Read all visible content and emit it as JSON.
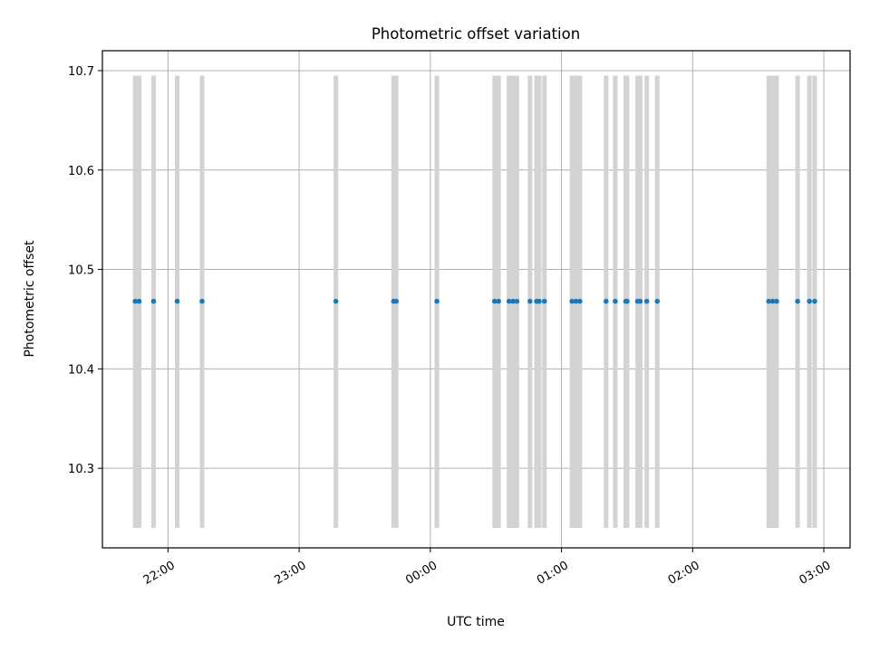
{
  "chart_data": {
    "type": "scatter",
    "title": "Photometric offset variation",
    "xlabel": "UTC time",
    "ylabel": "Photometric offset",
    "x_unit": "hours UTC (values above 24 are after midnight)",
    "xlim": [
      21.5,
      27.2
    ],
    "ylim": [
      10.22,
      10.72
    ],
    "grid": true,
    "x_ticks": [
      {
        "value": 22,
        "label": "22:00"
      },
      {
        "value": 23,
        "label": "23:00"
      },
      {
        "value": 24,
        "label": "00:00"
      },
      {
        "value": 25,
        "label": "01:00"
      },
      {
        "value": 26,
        "label": "02:00"
      },
      {
        "value": 27,
        "label": "03:00"
      }
    ],
    "y_ticks": [
      {
        "value": 10.3,
        "label": "10.3"
      },
      {
        "value": 10.4,
        "label": "10.4"
      },
      {
        "value": 10.5,
        "label": "10.5"
      },
      {
        "value": 10.6,
        "label": "10.6"
      },
      {
        "value": 10.7,
        "label": "10.7"
      }
    ],
    "error_bars": {
      "color": "#d3d3d3",
      "low": 10.24,
      "high": 10.695
    },
    "series": [
      {
        "color": "#1f77b4",
        "x": [
          21.75,
          21.78,
          21.89,
          22.07,
          22.26,
          23.28,
          23.72,
          23.74,
          24.05,
          24.49,
          24.52,
          24.6,
          24.63,
          24.66,
          24.76,
          24.81,
          24.83,
          24.87,
          25.08,
          25.11,
          25.14,
          25.34,
          25.41,
          25.49,
          25.5,
          25.58,
          25.6,
          25.65,
          25.73,
          26.58,
          26.61,
          26.64,
          26.8,
          26.89,
          26.93
        ],
        "y": [
          10.468,
          10.468,
          10.468,
          10.468,
          10.468,
          10.468,
          10.468,
          10.468,
          10.468,
          10.468,
          10.468,
          10.468,
          10.468,
          10.468,
          10.468,
          10.468,
          10.468,
          10.468,
          10.468,
          10.468,
          10.468,
          10.468,
          10.468,
          10.468,
          10.468,
          10.468,
          10.468,
          10.468,
          10.468,
          10.468,
          10.468,
          10.468,
          10.468,
          10.468,
          10.468
        ]
      }
    ]
  }
}
